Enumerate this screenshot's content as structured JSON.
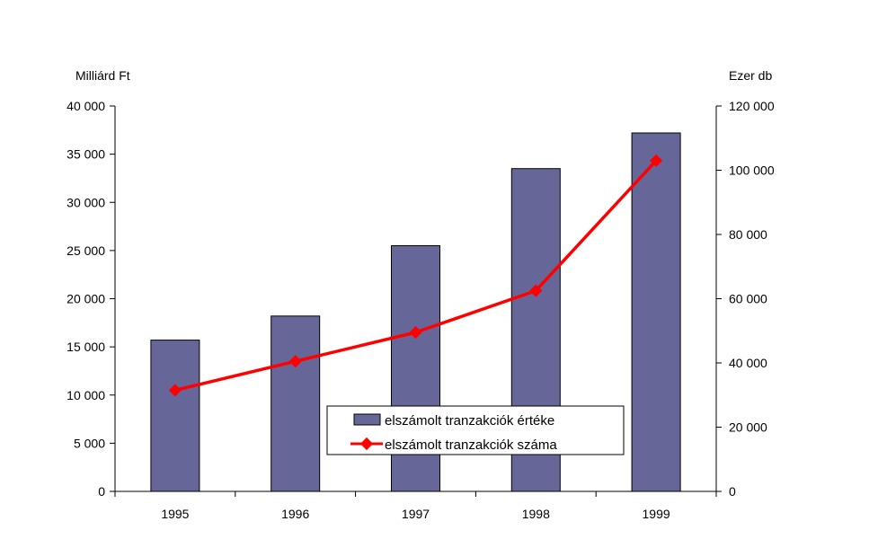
{
  "chart_data": {
    "type": "bar+line",
    "categories": [
      "1995",
      "1996",
      "1997",
      "1998",
      "1999"
    ],
    "series": [
      {
        "name": "elszámolt tranzakciók értéke",
        "kind": "bar",
        "axis": "left",
        "color": "#666699",
        "values": [
          15700,
          18200,
          25500,
          33500,
          37200
        ]
      },
      {
        "name": "elszámolt tranzakciók száma",
        "kind": "line",
        "axis": "right",
        "color": "#ff0000",
        "values": [
          31500,
          40500,
          49500,
          62500,
          103000
        ]
      }
    ],
    "y_left": {
      "label": "Milliárd Ft",
      "range": [
        0,
        40000
      ],
      "ticks": [
        0,
        5000,
        10000,
        15000,
        20000,
        25000,
        30000,
        35000,
        40000
      ],
      "tick_labels": [
        "0",
        "5 000",
        "10 000",
        "15 000",
        "20 000",
        "25 000",
        "30 000",
        "35 000",
        "40 000"
      ]
    },
    "y_right": {
      "label": "Ezer db",
      "range": [
        0,
        120000
      ],
      "ticks": [
        0,
        20000,
        40000,
        60000,
        80000,
        100000,
        120000
      ],
      "tick_labels": [
        "0",
        "20 000",
        "40 000",
        "60 000",
        "80 000",
        "100 000",
        "120 000"
      ]
    },
    "grid": false,
    "legend": {
      "position": "bottom-center",
      "entries": [
        "elszámolt tranzakciók értéke",
        "elszámolt tranzakciók száma"
      ]
    }
  }
}
